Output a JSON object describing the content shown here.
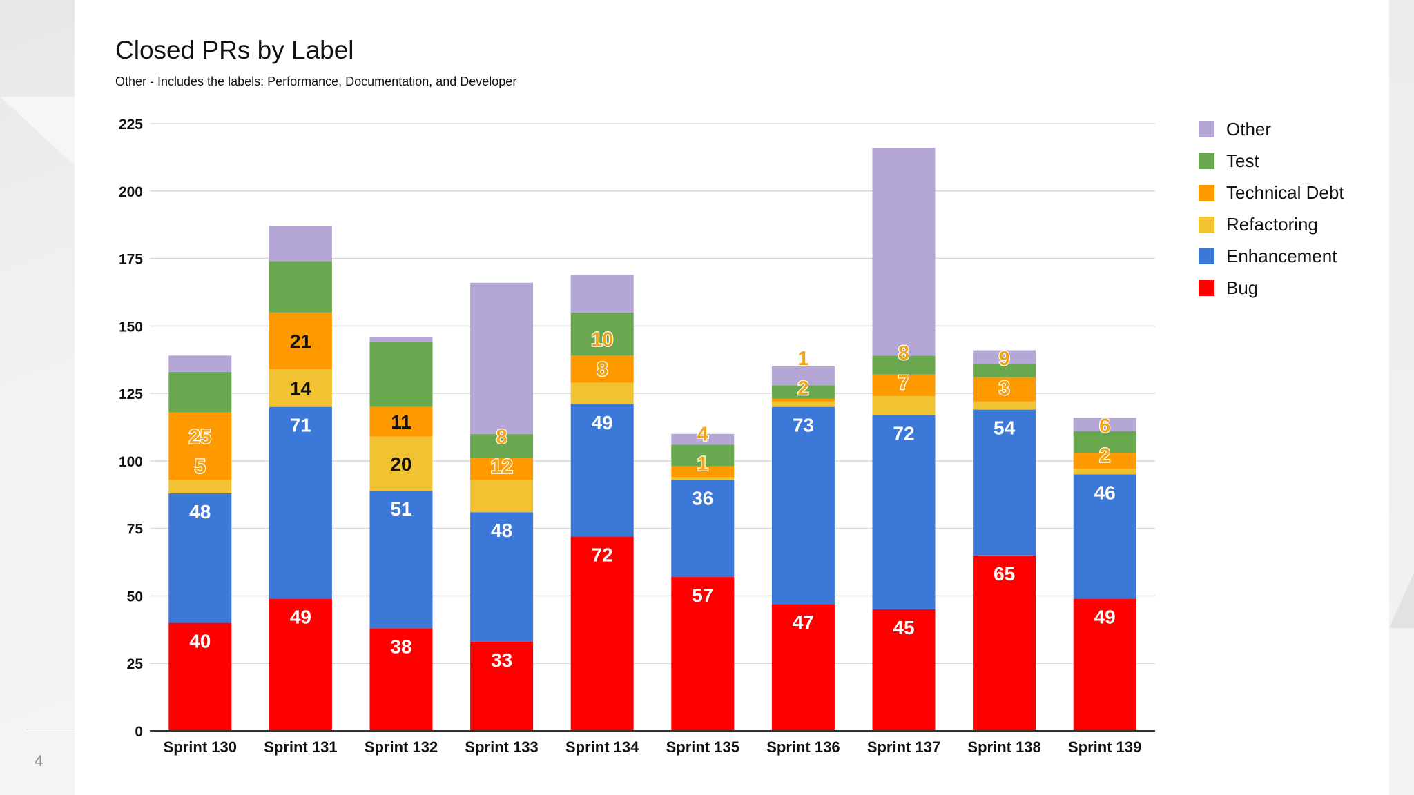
{
  "slide": {
    "number": "4"
  },
  "chart_data": {
    "type": "bar",
    "stacked": true,
    "title": "Closed PRs by Label",
    "subtitle": "Other - Includes the labels: Performance, Documentation, and Developer",
    "xlabel": "",
    "ylabel": "",
    "ylim": [
      0,
      225
    ],
    "yticks": [
      "0",
      "25",
      "50",
      "75",
      "100",
      "125",
      "150",
      "175",
      "200",
      "225"
    ],
    "legend_position": "right",
    "categories": [
      "Sprint 130",
      "Sprint 131",
      "Sprint 132",
      "Sprint 133",
      "Sprint 134",
      "Sprint 135",
      "Sprint 136",
      "Sprint 137",
      "Sprint 138",
      "Sprint 139"
    ],
    "series": [
      {
        "name": "Bug",
        "color": "#ff0000",
        "values": [
          40,
          49,
          38,
          33,
          72,
          57,
          47,
          45,
          65,
          49
        ]
      },
      {
        "name": "Enhancement",
        "color": "#3c78d8",
        "values": [
          48,
          71,
          51,
          48,
          49,
          36,
          73,
          72,
          54,
          46
        ]
      },
      {
        "name": "Refactoring",
        "color": "#f1c232",
        "values": [
          5,
          14,
          20,
          12,
          8,
          1,
          2,
          7,
          3,
          2
        ]
      },
      {
        "name": "Technical Debt",
        "color": "#ff9900",
        "values": [
          25,
          21,
          11,
          8,
          10,
          4,
          1,
          8,
          9,
          6
        ]
      },
      {
        "name": "Test",
        "color": "#6aa84f",
        "values": [
          15,
          19,
          24,
          9,
          16,
          8,
          5,
          7,
          5,
          8
        ]
      },
      {
        "name": "Other",
        "color": "#b4a7d6",
        "values": [
          6,
          13,
          2,
          56,
          14,
          4,
          7,
          77,
          5,
          5
        ]
      }
    ],
    "data_labels": [
      {
        "series": "Bug",
        "labels": [
          "40",
          "49",
          "38",
          "33",
          "72",
          "57",
          "47",
          "45",
          "65",
          "49"
        ]
      },
      {
        "series": "Enhancement",
        "labels": [
          "48",
          "71",
          "51",
          "48",
          "49",
          "36",
          "73",
          "72",
          "54",
          "46"
        ]
      },
      {
        "series": "Refactoring",
        "labels": [
          "5",
          "14",
          "20",
          "12",
          "8",
          "1",
          "2",
          "7",
          "3",
          "2"
        ]
      },
      {
        "series": "Technical Debt",
        "labels": [
          "25",
          "21",
          "11",
          "8",
          "10",
          "4",
          "1",
          "8",
          "9",
          "6"
        ]
      }
    ],
    "legend_order": [
      "Other",
      "Test",
      "Technical Debt",
      "Refactoring",
      "Enhancement",
      "Bug"
    ]
  }
}
